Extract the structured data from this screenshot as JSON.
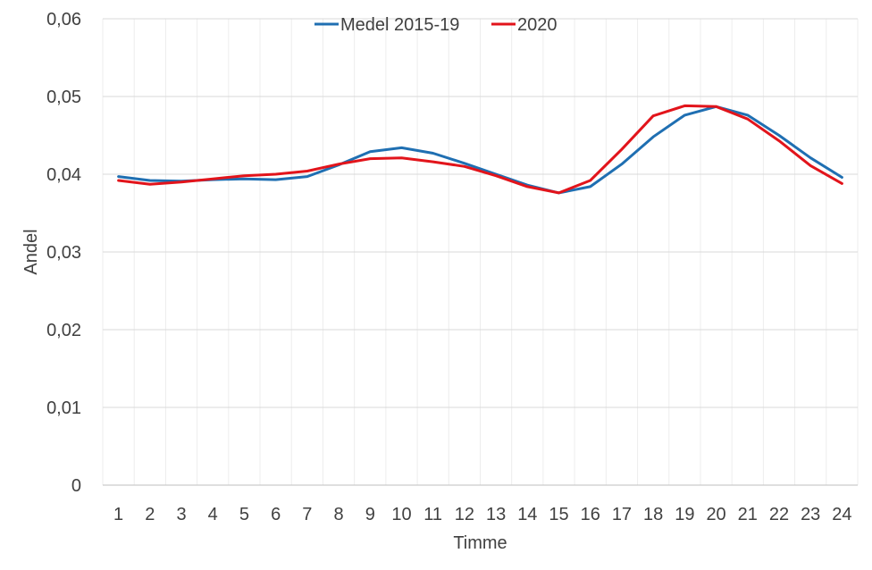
{
  "chart_data": {
    "type": "line",
    "title": "",
    "xlabel": "Timme",
    "ylabel": "Andel",
    "x": [
      1,
      2,
      3,
      4,
      5,
      6,
      7,
      8,
      9,
      10,
      11,
      12,
      13,
      14,
      15,
      16,
      17,
      18,
      19,
      20,
      21,
      22,
      23,
      24
    ],
    "ylim": [
      0,
      0.06
    ],
    "yticks": [
      0,
      0.01,
      0.02,
      0.03,
      0.04,
      0.05,
      0.06
    ],
    "ytick_labels": [
      "0",
      "0,01",
      "0,02",
      "0,03",
      "0,04",
      "0,05",
      "0,06"
    ],
    "grid": true,
    "legend_position": "top-center",
    "series": [
      {
        "name": "Medel 2015-19",
        "color": "#1f6fb2",
        "values": [
          0.0397,
          0.0392,
          0.0391,
          0.0393,
          0.0394,
          0.0393,
          0.0397,
          0.0412,
          0.0429,
          0.0434,
          0.0427,
          0.0414,
          0.04,
          0.0386,
          0.0376,
          0.0384,
          0.0413,
          0.0448,
          0.0476,
          0.0487,
          0.0476,
          0.045,
          0.0421,
          0.0396
        ]
      },
      {
        "name": "2020",
        "color": "#e2141b",
        "values": [
          0.0392,
          0.0387,
          0.039,
          0.0394,
          0.0398,
          0.04,
          0.0404,
          0.0413,
          0.042,
          0.0421,
          0.0416,
          0.041,
          0.0398,
          0.0384,
          0.0376,
          0.0392,
          0.0432,
          0.0475,
          0.0488,
          0.0487,
          0.0471,
          0.0443,
          0.0411,
          0.0388
        ]
      }
    ]
  }
}
